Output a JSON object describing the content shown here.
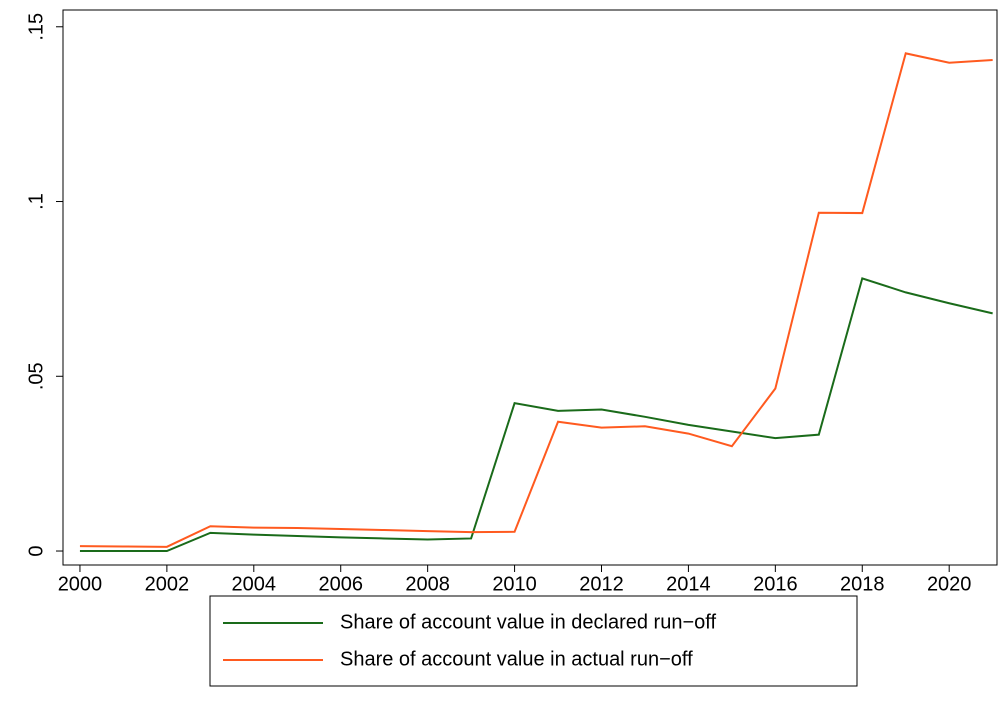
{
  "chart_data": {
    "type": "line",
    "x": [
      2000,
      2001,
      2002,
      2003,
      2004,
      2005,
      2006,
      2007,
      2008,
      2009,
      2010,
      2011,
      2012,
      2013,
      2014,
      2015,
      2016,
      2017,
      2018,
      2019,
      2020,
      2021
    ],
    "series": [
      {
        "name": "Share of account value in declared run−off",
        "color": "#1a6b1a",
        "values": [
          0,
          0,
          0,
          0.0052,
          0.0047,
          0.0043,
          0.0039,
          0.0036,
          0.0033,
          0.0036,
          0.0423,
          0.0401,
          0.0405,
          0.0384,
          0.0361,
          0.0342,
          0.0323,
          0.0333,
          0.078,
          0.074,
          0.0709,
          0.068
        ]
      },
      {
        "name": "Share of account value in actual run−off",
        "color": "#ff5a1f",
        "values": [
          0.0014,
          0.0013,
          0.0012,
          0.0071,
          0.0067,
          0.0066,
          0.0063,
          0.006,
          0.0057,
          0.0054,
          0.0055,
          0.037,
          0.0353,
          0.0357,
          0.0336,
          0.03,
          0.0465,
          0.0968,
          0.0967,
          0.1424,
          0.1397,
          0.1405
        ]
      }
    ],
    "xlim": [
      1999.61,
      2021.1
    ],
    "xticks": [
      2000,
      2002,
      2004,
      2006,
      2008,
      2010,
      2012,
      2014,
      2016,
      2018,
      2020
    ],
    "ylim": [
      -0.004,
      0.1548
    ],
    "yticks": [
      0,
      {
        "value": 0.05,
        "label": ".05"
      },
      {
        "value": 0.1,
        "label": ".1"
      },
      {
        "value": 0.15,
        "label": ".15"
      }
    ],
    "legend": "bottom"
  }
}
